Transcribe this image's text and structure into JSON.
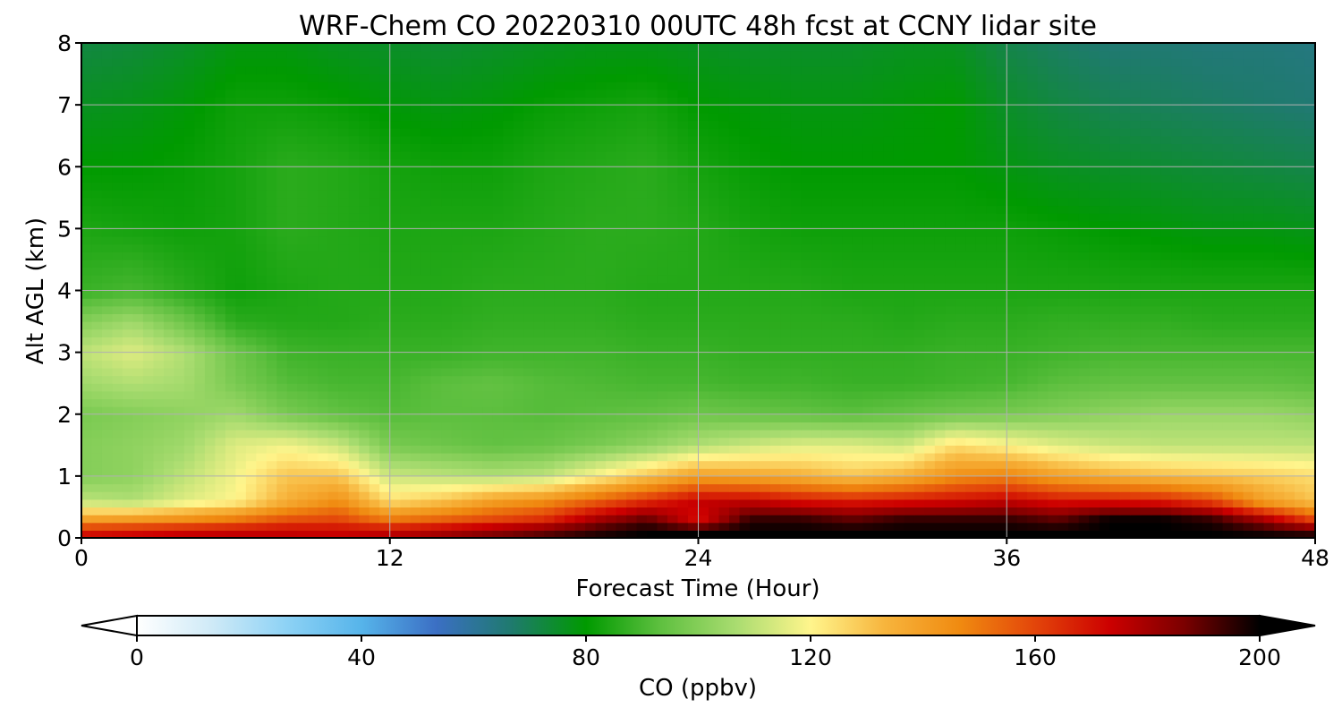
{
  "chart_data": {
    "type": "heatmap",
    "title": "WRF-Chem CO  20220310 00UTC 48h fcst at CCNY lidar site",
    "xlabel": "Forecast Time (Hour)",
    "ylabel": "Alt AGL (km)",
    "xlim": [
      0,
      48
    ],
    "ylim": [
      0,
      8
    ],
    "x_ticks": [
      "0",
      "12",
      "24",
      "36",
      "48"
    ],
    "y_ticks": [
      "0",
      "1",
      "2",
      "3",
      "4",
      "5",
      "6",
      "7",
      "8"
    ],
    "grid": true,
    "colorbar": {
      "label": "CO  (ppbv)",
      "range": [
        0,
        200
      ],
      "extend": "both",
      "ticks": [
        "0",
        "40",
        "80",
        "120",
        "160",
        "200"
      ],
      "colors": [
        "#ffffff",
        "#cfeaf7",
        "#8dd2f5",
        "#56b4ea",
        "#3b6fc4",
        "#1f7a6e",
        "#009a00",
        "#5fc040",
        "#a9dc70",
        "#fff58c",
        "#f7b43c",
        "#f08a10",
        "#e3450a",
        "#cc0000",
        "#7a0000",
        "#000000"
      ]
    },
    "x_hours": [
      0,
      2,
      4,
      6,
      8,
      10,
      12,
      14,
      16,
      18,
      20,
      22,
      24,
      26,
      28,
      30,
      32,
      34,
      36,
      38,
      40,
      42,
      44,
      46,
      48
    ],
    "altitudes_km": [
      0.1,
      0.3,
      0.6,
      1.0,
      1.5,
      2.0,
      2.5,
      3.0,
      3.5,
      4.0,
      5.0,
      6.0,
      7.0,
      8.0
    ],
    "values_ppbv": [
      [
        170,
        172,
        174,
        175,
        175,
        174,
        176,
        180,
        185,
        190,
        196,
        200,
        200,
        200,
        200,
        200,
        200,
        200,
        200,
        200,
        200,
        200,
        200,
        198,
        195
      ],
      [
        140,
        142,
        145,
        150,
        158,
        160,
        150,
        155,
        160,
        165,
        180,
        190,
        170,
        195,
        195,
        190,
        195,
        195,
        195,
        190,
        200,
        200,
        195,
        180,
        160
      ],
      [
        110,
        108,
        115,
        120,
        135,
        145,
        125,
        130,
        140,
        145,
        155,
        165,
        175,
        175,
        170,
        168,
        170,
        172,
        175,
        170,
        170,
        168,
        160,
        140,
        130
      ],
      [
        100,
        102,
        110,
        118,
        130,
        130,
        112,
        110,
        108,
        110,
        120,
        130,
        140,
        138,
        135,
        130,
        135,
        145,
        148,
        140,
        135,
        132,
        130,
        128,
        125
      ],
      [
        100,
        102,
        105,
        115,
        118,
        112,
        98,
        96,
        94,
        95,
        98,
        102,
        108,
        112,
        115,
        115,
        112,
        125,
        120,
        115,
        112,
        110,
        110,
        110,
        110
      ],
      [
        98,
        100,
        102,
        105,
        98,
        94,
        92,
        93,
        93,
        92,
        93,
        94,
        96,
        95,
        94,
        93,
        95,
        97,
        98,
        100,
        102,
        104,
        104,
        104,
        102
      ],
      [
        105,
        108,
        106,
        98,
        92,
        90,
        90,
        93,
        94,
        92,
        91,
        90,
        90,
        89,
        89,
        88,
        88,
        89,
        90,
        93,
        94,
        94,
        94,
        94,
        93
      ],
      [
        110,
        115,
        108,
        96,
        89,
        88,
        88,
        88,
        89,
        89,
        89,
        88,
        88,
        87,
        87,
        87,
        87,
        88,
        88,
        89,
        90,
        90,
        90,
        90,
        90
      ],
      [
        100,
        105,
        96,
        86,
        85,
        85,
        86,
        86,
        87,
        87,
        87,
        86,
        86,
        86,
        86,
        86,
        85,
        86,
        86,
        87,
        87,
        87,
        86,
        86,
        86
      ],
      [
        88,
        90,
        86,
        82,
        84,
        85,
        85,
        85,
        86,
        86,
        86,
        85,
        85,
        85,
        85,
        84,
        84,
        84,
        84,
        84,
        84,
        84,
        84,
        84,
        84
      ],
      [
        84,
        83,
        82,
        83,
        86,
        85,
        84,
        84,
        84,
        85,
        86,
        86,
        85,
        83,
        82,
        82,
        82,
        82,
        82,
        81,
        80,
        79,
        78,
        78,
        77
      ],
      [
        80,
        80,
        81,
        83,
        86,
        85,
        83,
        82,
        82,
        84,
        85,
        86,
        83,
        81,
        80,
        80,
        80,
        80,
        78,
        76,
        75,
        74,
        73,
        72,
        71
      ],
      [
        76,
        77,
        79,
        82,
        82,
        81,
        79,
        78,
        79,
        81,
        82,
        83,
        80,
        79,
        78,
        78,
        79,
        80,
        75,
        72,
        70,
        69,
        68,
        67,
        66
      ],
      [
        72,
        73,
        75,
        78,
        78,
        76,
        75,
        74,
        75,
        76,
        77,
        77,
        76,
        75,
        75,
        75,
        76,
        76,
        71,
        68,
        66,
        66,
        65,
        65,
        64
      ]
    ]
  }
}
